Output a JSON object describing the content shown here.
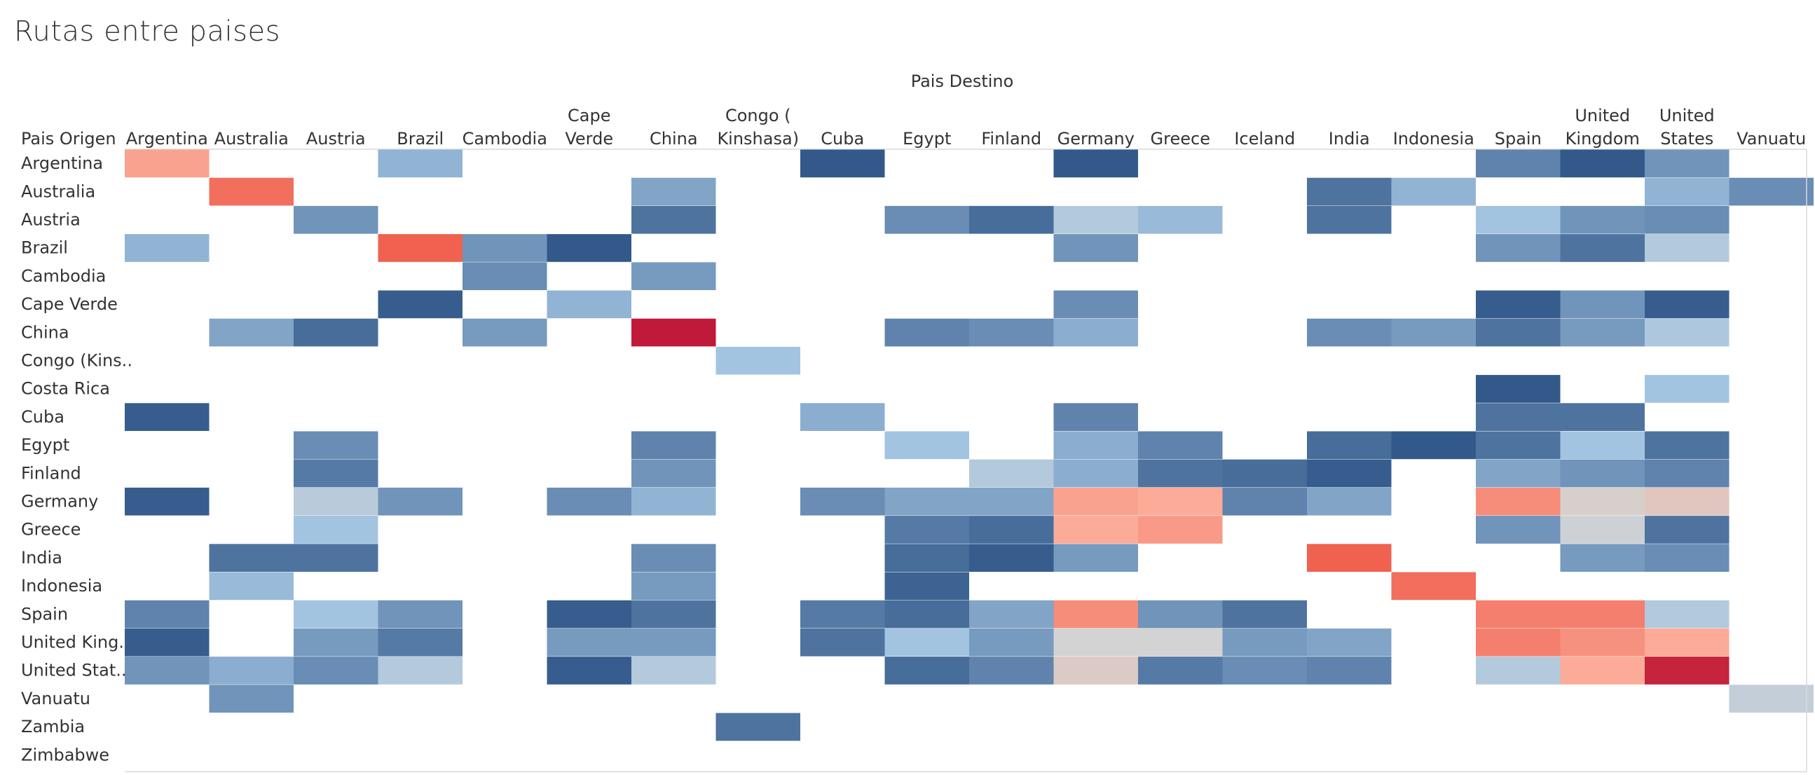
{
  "title": "Rutas entre paises",
  "colors": {
    "low_blue": "#2c5385",
    "mid_blue": "#a3c4e1",
    "neutral": "#d3d3d3",
    "high_red": "#c0193a",
    "row_border": "#d9d9d9"
  },
  "chart_data": {
    "type": "heatmap",
    "title": "Rutas entre paises",
    "xlabel": "Pais Destino",
    "ylabel": "Pais Origen",
    "grid": false,
    "x_categories": [
      "Argentina",
      "Australia",
      "Austria",
      "Brazil",
      "Cambodia",
      "Cape Verde",
      "China",
      "Congo ( Kinshasa)",
      "Cuba",
      "Egypt",
      "Finland",
      "Germany",
      "Greece",
      "Iceland",
      "India",
      "Indonesia",
      "Spain",
      "United Kingdom",
      "United States",
      "Vanuatu"
    ],
    "x_tick_labels": [
      [
        "Argentina"
      ],
      [
        "Australia"
      ],
      [
        "Austria"
      ],
      [
        "Brazil"
      ],
      [
        "Cambodia"
      ],
      [
        "Cape",
        "Verde"
      ],
      [
        "China"
      ],
      [
        "Congo (",
        "Kinshasa)"
      ],
      [
        "Cuba"
      ],
      [
        "Egypt"
      ],
      [
        "Finland"
      ],
      [
        "Germany"
      ],
      [
        "Greece"
      ],
      [
        "Iceland"
      ],
      [
        "India"
      ],
      [
        "Indonesia"
      ],
      [
        "Spain"
      ],
      [
        "United",
        "Kingdom"
      ],
      [
        "United",
        "States"
      ],
      [
        "Vanuatu"
      ]
    ],
    "y_categories": [
      "Argentina",
      "Australia",
      "Austria",
      "Brazil",
      "Cambodia",
      "Cape Verde",
      "China",
      "Congo (Kinshasa)",
      "Costa Rica",
      "Cuba",
      "Egypt",
      "Finland",
      "Germany",
      "Greece",
      "India",
      "Indonesia",
      "Spain",
      "United Kingdom",
      "United States",
      "Vanuatu",
      "Zambia",
      "Zimbabwe"
    ],
    "y_tick_labels": [
      "Argentina",
      "Australia",
      "Austria",
      "Brazil",
      "Cambodia",
      "Cape Verde",
      "China",
      "Congo (Kins..",
      "Costa Rica",
      "Cuba",
      "Egypt",
      "Finland",
      "Germany",
      "Greece",
      "India",
      "Indonesia",
      "Spain",
      "United King..",
      "United Stat..",
      "Vanuatu",
      "Zambia",
      "Zimbabwe"
    ],
    "value_scale": "relative intensity, 0 = darkest blue, 1 = darkest red",
    "values": [
      [
        0.7,
        null,
        null,
        0.3,
        null,
        null,
        null,
        null,
        0.02,
        null,
        null,
        0.02,
        null,
        null,
        null,
        null,
        0.15,
        0.02,
        0.2,
        null
      ],
      [
        null,
        0.82,
        null,
        null,
        null,
        null,
        0.25,
        null,
        null,
        null,
        null,
        null,
        null,
        null,
        0.1,
        0.3,
        null,
        null,
        0.3,
        0.18
      ],
      [
        null,
        null,
        0.2,
        null,
        null,
        null,
        0.1,
        null,
        null,
        0.18,
        0.08,
        0.4,
        0.32,
        null,
        0.1,
        null,
        0.35,
        0.2,
        0.18,
        null
      ],
      [
        0.3,
        null,
        null,
        0.85,
        0.2,
        0.02,
        null,
        null,
        null,
        null,
        null,
        0.2,
        null,
        null,
        null,
        null,
        0.2,
        0.1,
        0.4,
        null
      ],
      [
        null,
        null,
        null,
        null,
        0.18,
        null,
        0.22,
        null,
        null,
        null,
        null,
        null,
        null,
        null,
        null,
        null,
        null,
        null,
        null,
        null
      ],
      [
        null,
        null,
        null,
        0.03,
        null,
        0.3,
        null,
        null,
        null,
        null,
        null,
        0.18,
        null,
        null,
        null,
        null,
        0.03,
        0.2,
        0.03,
        null
      ],
      [
        null,
        0.25,
        0.08,
        null,
        0.22,
        null,
        1.0,
        null,
        null,
        0.15,
        0.18,
        0.28,
        null,
        null,
        0.18,
        0.22,
        0.1,
        0.22,
        0.38,
        null
      ],
      [
        null,
        null,
        null,
        null,
        null,
        null,
        null,
        0.35,
        null,
        null,
        null,
        null,
        null,
        null,
        null,
        null,
        null,
        null,
        null,
        null
      ],
      [
        null,
        null,
        null,
        null,
        null,
        null,
        null,
        null,
        null,
        null,
        null,
        null,
        null,
        null,
        null,
        null,
        0.02,
        null,
        0.35,
        null
      ],
      [
        0.03,
        null,
        null,
        null,
        null,
        null,
        null,
        null,
        0.28,
        null,
        null,
        0.15,
        null,
        null,
        null,
        null,
        0.1,
        0.1,
        null,
        null
      ],
      [
        null,
        null,
        0.18,
        null,
        null,
        null,
        0.15,
        null,
        null,
        0.35,
        null,
        0.28,
        0.15,
        null,
        0.08,
        0.02,
        0.1,
        0.35,
        0.1,
        null
      ],
      [
        null,
        null,
        0.12,
        null,
        null,
        null,
        0.2,
        null,
        null,
        null,
        0.4,
        0.28,
        0.1,
        0.08,
        0.03,
        null,
        0.25,
        0.2,
        0.15,
        null
      ],
      [
        0.03,
        null,
        0.42,
        0.2,
        null,
        0.18,
        0.3,
        null,
        0.18,
        0.25,
        0.25,
        0.7,
        0.68,
        0.15,
        0.25,
        null,
        0.75,
        0.52,
        0.56,
        null
      ],
      [
        null,
        null,
        0.35,
        null,
        null,
        null,
        null,
        null,
        null,
        0.12,
        0.08,
        0.68,
        0.72,
        null,
        null,
        null,
        0.2,
        0.48,
        0.1,
        null
      ],
      [
        null,
        0.1,
        0.1,
        null,
        null,
        null,
        0.18,
        null,
        null,
        0.08,
        0.03,
        0.22,
        null,
        null,
        0.85,
        null,
        null,
        0.22,
        0.18,
        null
      ],
      [
        null,
        0.32,
        null,
        null,
        null,
        null,
        0.22,
        null,
        null,
        0.05,
        null,
        null,
        null,
        null,
        null,
        0.82,
        null,
        null,
        null,
        null
      ],
      [
        0.15,
        null,
        0.35,
        0.2,
        null,
        0.03,
        0.1,
        null,
        0.12,
        0.08,
        0.25,
        0.75,
        0.2,
        0.1,
        null,
        null,
        0.78,
        0.78,
        0.4,
        null
      ],
      [
        0.03,
        null,
        0.22,
        0.12,
        null,
        0.22,
        0.22,
        null,
        0.1,
        0.35,
        0.22,
        0.5,
        0.5,
        0.22,
        0.25,
        null,
        0.78,
        0.74,
        0.68,
        null
      ],
      [
        0.2,
        0.28,
        0.18,
        0.4,
        null,
        0.03,
        0.4,
        null,
        null,
        0.08,
        0.15,
        0.54,
        0.12,
        0.18,
        0.15,
        null,
        0.4,
        0.68,
        0.98,
        null
      ],
      [
        null,
        0.2,
        null,
        null,
        null,
        null,
        null,
        null,
        null,
        null,
        null,
        null,
        null,
        null,
        null,
        null,
        null,
        null,
        null,
        0.45
      ],
      [
        null,
        null,
        null,
        null,
        null,
        null,
        null,
        0.1,
        null,
        null,
        null,
        null,
        null,
        null,
        null,
        null,
        null,
        null,
        null,
        null
      ],
      [
        null,
        null,
        null,
        null,
        null,
        null,
        null,
        null,
        null,
        null,
        null,
        null,
        null,
        null,
        null,
        null,
        null,
        null,
        null,
        null
      ]
    ]
  }
}
